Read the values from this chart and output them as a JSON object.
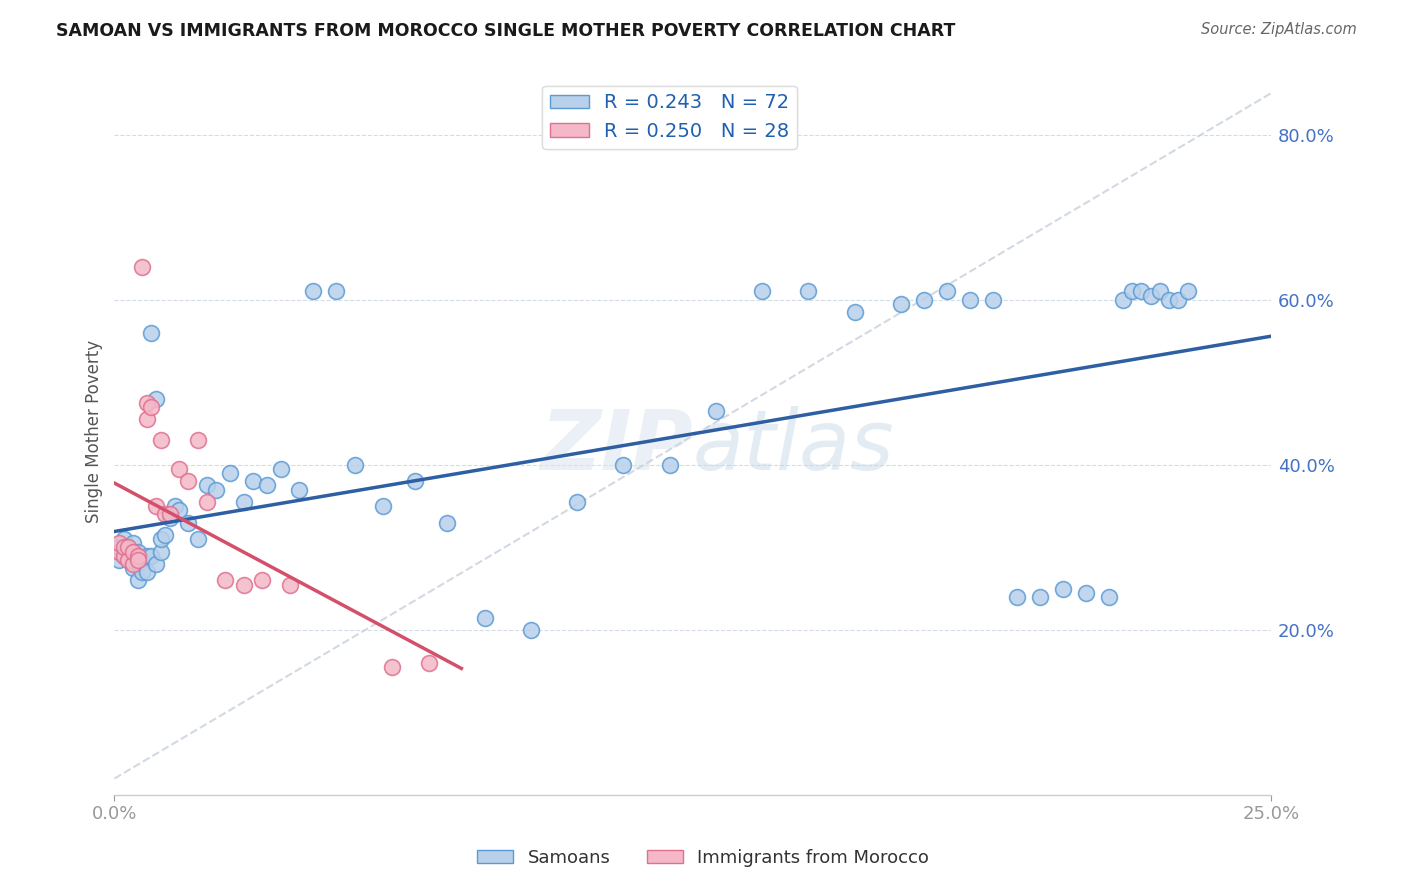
{
  "title": "SAMOAN VS IMMIGRANTS FROM MOROCCO SINGLE MOTHER POVERTY CORRELATION CHART",
  "source": "Source: ZipAtlas.com",
  "ylabel": "Single Mother Poverty",
  "x_lim": [
    0.0,
    0.25
  ],
  "y_lim": [
    0.0,
    0.88
  ],
  "R_samoan": 0.243,
  "N_samoan": 72,
  "R_morocco": 0.25,
  "N_morocco": 28,
  "color_samoan_fill": "#b8d0ea",
  "color_samoan_edge": "#5b9bd5",
  "color_morocco_fill": "#f4b8c8",
  "color_morocco_edge": "#e07090",
  "color_samoan_line": "#2e5fa3",
  "color_morocco_line": "#d4506a",
  "color_ref_line": "#c8d0dc",
  "legend_label_samoan": "Samoans",
  "legend_label_morocco": "Immigrants from Morocco",
  "samoan_x": [
    0.001,
    0.001,
    0.001,
    0.002,
    0.002,
    0.002,
    0.003,
    0.003,
    0.003,
    0.004,
    0.004,
    0.004,
    0.005,
    0.005,
    0.005,
    0.006,
    0.006,
    0.007,
    0.007,
    0.008,
    0.008,
    0.009,
    0.009,
    0.01,
    0.01,
    0.011,
    0.012,
    0.013,
    0.014,
    0.016,
    0.018,
    0.02,
    0.022,
    0.025,
    0.028,
    0.03,
    0.033,
    0.036,
    0.04,
    0.043,
    0.048,
    0.052,
    0.058,
    0.065,
    0.072,
    0.08,
    0.09,
    0.1,
    0.11,
    0.12,
    0.13,
    0.14,
    0.15,
    0.16,
    0.17,
    0.175,
    0.18,
    0.185,
    0.19,
    0.195,
    0.2,
    0.205,
    0.21,
    0.215,
    0.218,
    0.22,
    0.222,
    0.224,
    0.226,
    0.228,
    0.23,
    0.232
  ],
  "samoan_y": [
    0.3,
    0.295,
    0.285,
    0.31,
    0.29,
    0.295,
    0.3,
    0.29,
    0.285,
    0.305,
    0.295,
    0.275,
    0.295,
    0.28,
    0.26,
    0.285,
    0.27,
    0.29,
    0.27,
    0.29,
    0.56,
    0.48,
    0.28,
    0.295,
    0.31,
    0.315,
    0.335,
    0.35,
    0.345,
    0.33,
    0.31,
    0.375,
    0.37,
    0.39,
    0.355,
    0.38,
    0.375,
    0.395,
    0.37,
    0.61,
    0.61,
    0.4,
    0.35,
    0.38,
    0.33,
    0.215,
    0.2,
    0.355,
    0.4,
    0.4,
    0.465,
    0.61,
    0.61,
    0.585,
    0.595,
    0.6,
    0.61,
    0.6,
    0.6,
    0.24,
    0.24,
    0.25,
    0.245,
    0.24,
    0.6,
    0.61,
    0.61,
    0.605,
    0.61,
    0.6,
    0.6,
    0.61
  ],
  "morocco_x": [
    0.001,
    0.001,
    0.002,
    0.002,
    0.003,
    0.003,
    0.004,
    0.004,
    0.005,
    0.005,
    0.006,
    0.007,
    0.007,
    0.008,
    0.009,
    0.01,
    0.011,
    0.012,
    0.014,
    0.016,
    0.018,
    0.02,
    0.024,
    0.028,
    0.032,
    0.038,
    0.06,
    0.068
  ],
  "morocco_y": [
    0.295,
    0.305,
    0.29,
    0.3,
    0.285,
    0.3,
    0.28,
    0.295,
    0.29,
    0.285,
    0.64,
    0.475,
    0.455,
    0.47,
    0.35,
    0.43,
    0.34,
    0.34,
    0.395,
    0.38,
    0.43,
    0.355,
    0.26,
    0.255,
    0.26,
    0.255,
    0.155,
    0.16
  ]
}
